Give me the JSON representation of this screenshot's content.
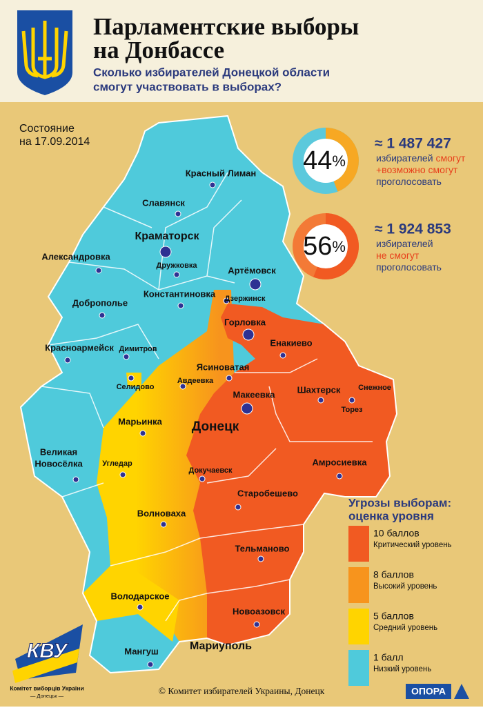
{
  "header": {
    "title": [
      "Парламентские выборы",
      "на Донбассе"
    ],
    "subtitle": [
      "Сколько избирателей Донецкой области",
      "смогут участвовать в выборах?"
    ]
  },
  "status": [
    "Состояние",
    "на 17.09.2014"
  ],
  "stats": [
    {
      "value": 44,
      "unit": "%",
      "colors": [
        "#f7a823",
        "#5bc9dc"
      ],
      "count": "≈ 1 487 427",
      "lines": [
        [
          {
            "text": "избирателей "
          },
          {
            "text": "смогут",
            "accent": true
          }
        ],
        [
          {
            "text": "+возможно смогут",
            "accent": true
          }
        ],
        [
          {
            "text": "проголосовать"
          }
        ]
      ]
    },
    {
      "value": 56,
      "unit": "%",
      "colors": [
        "#f15a22",
        "#f37a36"
      ],
      "count": "≈ 1 924 853",
      "lines": [
        [
          {
            "text": "избирателей"
          }
        ],
        [
          {
            "text": "не смогут",
            "accent": true
          }
        ],
        [
          {
            "text": "проголосовать"
          }
        ]
      ]
    }
  ],
  "cities": [
    {
      "name": "Красный Лиман"
    },
    {
      "name": "Славянск"
    },
    {
      "name": "Краматорск"
    },
    {
      "name": "Дружковка"
    },
    {
      "name": "Артёмовск"
    },
    {
      "name": "Александровка"
    },
    {
      "name": "Константиновка"
    },
    {
      "name": "Дзержинск"
    },
    {
      "name": "Доброполье"
    },
    {
      "name": "Горловка"
    },
    {
      "name": "Красноармейск"
    },
    {
      "name": "Димитров"
    },
    {
      "name": "Енакиево"
    },
    {
      "name": "Ясиноватая"
    },
    {
      "name": "Авдеевка"
    },
    {
      "name": "Селидово"
    },
    {
      "name": "Шахтерск"
    },
    {
      "name": "Снежное"
    },
    {
      "name": "Торез"
    },
    {
      "name": "Макеевка"
    },
    {
      "name": "Марьинка"
    },
    {
      "name": "Донецк"
    },
    {
      "name": [
        "Великая",
        "Новосёлка"
      ]
    },
    {
      "name": "Угледар"
    },
    {
      "name": "Докучаевск"
    },
    {
      "name": "Амросиевка"
    },
    {
      "name": "Старобешево"
    },
    {
      "name": "Волноваха"
    },
    {
      "name": "Тельманово"
    },
    {
      "name": "Володарское"
    },
    {
      "name": "Новоазовск"
    },
    {
      "name": "Мангуш"
    },
    {
      "name": "Мариуполь"
    }
  ],
  "legend": {
    "title": [
      "Угрозы выборам:",
      "оценка уровня"
    ],
    "items": [
      {
        "label": "10 баллов",
        "description": "Критический уровень",
        "color": "#f15a22"
      },
      {
        "label": "8 баллов",
        "description": "Высокий уровень",
        "color": "#f7941d"
      },
      {
        "label": "5 баллов",
        "description": "Средний уровень",
        "color": "#ffd400"
      },
      {
        "label": "1 балл",
        "description": "Низкий уровень",
        "color": "#4fcadb"
      }
    ]
  },
  "footer": {
    "copyright": "© Комитет избирателей Украины, Донецк",
    "logo": "КВУ",
    "org": [
      "Комітет виборців України",
      "— Донецьк —"
    ],
    "opora": "ОПОРА"
  }
}
